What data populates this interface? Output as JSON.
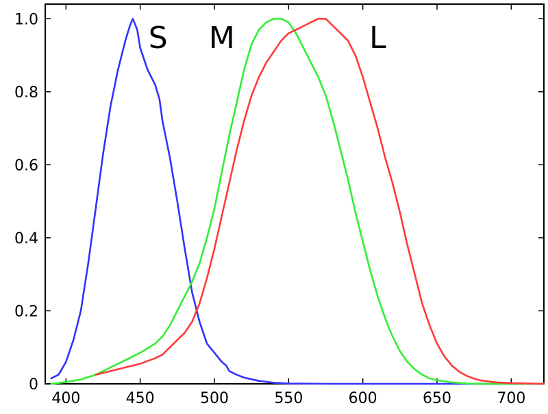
{
  "chart_data": {
    "type": "line",
    "title": "",
    "xlabel": "",
    "ylabel": "",
    "xlim": [
      386,
      722
    ],
    "ylim": [
      0,
      1.04
    ],
    "grid": false,
    "legend": "none",
    "x_ticks": [
      400,
      450,
      500,
      550,
      600,
      650,
      700
    ],
    "y_ticks": [
      0,
      0.2,
      0.4,
      0.6,
      0.8,
      1.0
    ],
    "x_tick_labels": [
      "400",
      "450",
      "500",
      "550",
      "600",
      "650",
      "700"
    ],
    "y_tick_labels": [
      "0",
      "0.2",
      "0.4",
      "0.6",
      "0.8",
      "1.0"
    ],
    "series": [
      {
        "name": "S",
        "color": "#3232ff",
        "points": [
          [
            390,
            0.015
          ],
          [
            395,
            0.025
          ],
          [
            400,
            0.06
          ],
          [
            405,
            0.12
          ],
          [
            410,
            0.2
          ],
          [
            415,
            0.33
          ],
          [
            420,
            0.48
          ],
          [
            425,
            0.63
          ],
          [
            430,
            0.76
          ],
          [
            435,
            0.86
          ],
          [
            440,
            0.94
          ],
          [
            443,
            0.98
          ],
          [
            445,
            1.0
          ],
          [
            448,
            0.97
          ],
          [
            450,
            0.92
          ],
          [
            455,
            0.86
          ],
          [
            460,
            0.82
          ],
          [
            463,
            0.78
          ],
          [
            465,
            0.72
          ],
          [
            470,
            0.62
          ],
          [
            475,
            0.5
          ],
          [
            480,
            0.37
          ],
          [
            485,
            0.25
          ],
          [
            490,
            0.17
          ],
          [
            495,
            0.11
          ],
          [
            500,
            0.085
          ],
          [
            505,
            0.06
          ],
          [
            508,
            0.05
          ],
          [
            510,
            0.035
          ],
          [
            515,
            0.025
          ],
          [
            520,
            0.017
          ],
          [
            530,
            0.008
          ],
          [
            540,
            0.003
          ],
          [
            550,
            0.001
          ],
          [
            580,
            0.0
          ],
          [
            722,
            0.0
          ]
        ]
      },
      {
        "name": "M",
        "color": "#33ee33",
        "points": [
          [
            390,
            0.0
          ],
          [
            400,
            0.005
          ],
          [
            410,
            0.012
          ],
          [
            420,
            0.025
          ],
          [
            430,
            0.045
          ],
          [
            440,
            0.065
          ],
          [
            450,
            0.085
          ],
          [
            460,
            0.11
          ],
          [
            465,
            0.13
          ],
          [
            470,
            0.16
          ],
          [
            475,
            0.2
          ],
          [
            480,
            0.24
          ],
          [
            485,
            0.28
          ],
          [
            490,
            0.33
          ],
          [
            495,
            0.4
          ],
          [
            500,
            0.48
          ],
          [
            505,
            0.58
          ],
          [
            510,
            0.68
          ],
          [
            515,
            0.77
          ],
          [
            520,
            0.86
          ],
          [
            525,
            0.93
          ],
          [
            530,
            0.97
          ],
          [
            535,
            0.99
          ],
          [
            540,
            1.0
          ],
          [
            545,
            1.0
          ],
          [
            550,
            0.99
          ],
          [
            555,
            0.96
          ],
          [
            560,
            0.92
          ],
          [
            565,
            0.88
          ],
          [
            570,
            0.84
          ],
          [
            575,
            0.79
          ],
          [
            580,
            0.72
          ],
          [
            585,
            0.64
          ],
          [
            590,
            0.56
          ],
          [
            595,
            0.47
          ],
          [
            600,
            0.39
          ],
          [
            605,
            0.31
          ],
          [
            610,
            0.24
          ],
          [
            615,
            0.18
          ],
          [
            620,
            0.13
          ],
          [
            625,
            0.09
          ],
          [
            630,
            0.06
          ],
          [
            635,
            0.04
          ],
          [
            640,
            0.025
          ],
          [
            645,
            0.015
          ],
          [
            650,
            0.01
          ],
          [
            660,
            0.004
          ],
          [
            670,
            0.001
          ],
          [
            680,
            0.0
          ],
          [
            722,
            0.0
          ]
        ]
      },
      {
        "name": "L",
        "color": "#ff3a3a",
        "points": [
          [
            420,
            0.025
          ],
          [
            430,
            0.035
          ],
          [
            440,
            0.045
          ],
          [
            450,
            0.055
          ],
          [
            460,
            0.07
          ],
          [
            465,
            0.08
          ],
          [
            470,
            0.1
          ],
          [
            475,
            0.12
          ],
          [
            480,
            0.14
          ],
          [
            485,
            0.17
          ],
          [
            490,
            0.22
          ],
          [
            495,
            0.29
          ],
          [
            500,
            0.37
          ],
          [
            505,
            0.46
          ],
          [
            510,
            0.55
          ],
          [
            515,
            0.64
          ],
          [
            520,
            0.72
          ],
          [
            525,
            0.79
          ],
          [
            530,
            0.84
          ],
          [
            535,
            0.88
          ],
          [
            540,
            0.91
          ],
          [
            545,
            0.94
          ],
          [
            550,
            0.96
          ],
          [
            555,
            0.97
          ],
          [
            560,
            0.98
          ],
          [
            565,
            0.99
          ],
          [
            570,
            1.0
          ],
          [
            575,
            1.0
          ],
          [
            580,
            0.98
          ],
          [
            585,
            0.96
          ],
          [
            590,
            0.94
          ],
          [
            595,
            0.9
          ],
          [
            600,
            0.84
          ],
          [
            605,
            0.77
          ],
          [
            610,
            0.7
          ],
          [
            615,
            0.62
          ],
          [
            620,
            0.55
          ],
          [
            625,
            0.47
          ],
          [
            630,
            0.38
          ],
          [
            635,
            0.3
          ],
          [
            640,
            0.22
          ],
          [
            645,
            0.16
          ],
          [
            650,
            0.11
          ],
          [
            655,
            0.075
          ],
          [
            660,
            0.05
          ],
          [
            665,
            0.033
          ],
          [
            670,
            0.022
          ],
          [
            675,
            0.014
          ],
          [
            680,
            0.009
          ],
          [
            690,
            0.004
          ],
          [
            700,
            0.002
          ],
          [
            722,
            0.0
          ]
        ]
      }
    ],
    "annotations": [
      {
        "text": "S",
        "x": 462,
        "y": 0.92
      },
      {
        "text": "M",
        "x": 505,
        "y": 0.92
      },
      {
        "text": "L",
        "x": 610,
        "y": 0.92
      }
    ]
  }
}
